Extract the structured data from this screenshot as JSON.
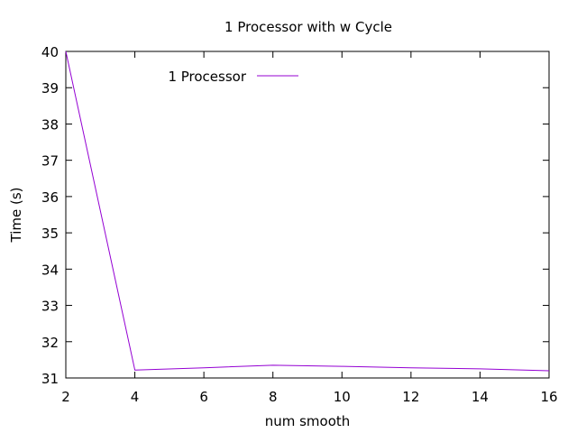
{
  "chart_data": {
    "type": "line",
    "title": "1 Processor with w Cycle",
    "xlabel": "num smooth",
    "ylabel": "Time (s)",
    "xlim": [
      2,
      16
    ],
    "ylim": [
      31,
      40
    ],
    "xticks": [
      2,
      4,
      6,
      8,
      10,
      12,
      14,
      16
    ],
    "yticks": [
      31,
      32,
      33,
      34,
      35,
      36,
      37,
      38,
      39,
      40
    ],
    "grid": false,
    "legend_position": "top-left",
    "series": [
      {
        "name": "1 Processor",
        "color": "#9400d3",
        "x": [
          2,
          4,
          6,
          8,
          10,
          12,
          14,
          16
        ],
        "y": [
          40.0,
          31.22,
          31.28,
          31.35,
          31.32,
          31.28,
          31.25,
          31.2
        ]
      }
    ]
  }
}
